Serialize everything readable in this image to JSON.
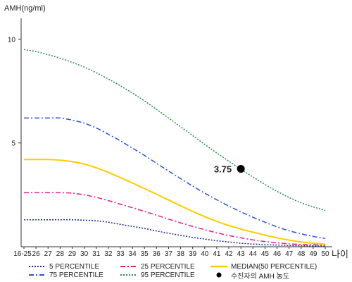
{
  "chart_data": {
    "type": "line",
    "ylabel": "AMH(ng/ml)",
    "xlabel": "나이",
    "categories": [
      "16-25",
      "26",
      "27",
      "28",
      "29",
      "30",
      "31",
      "32",
      "33",
      "34",
      "35",
      "36",
      "37",
      "38",
      "39",
      "40",
      "41",
      "42",
      "43",
      "44",
      "45",
      "46",
      "47",
      "48",
      "49",
      "50"
    ],
    "ylim": [
      0,
      11
    ],
    "yticks": [
      5,
      10
    ],
    "series": [
      {
        "name": "5 PERCENTILE",
        "color": "#1a2a8a",
        "dash": "2,2",
        "values": [
          1.3,
          1.3,
          1.3,
          1.3,
          1.3,
          1.28,
          1.25,
          1.18,
          1.08,
          0.98,
          0.88,
          0.76,
          0.65,
          0.55,
          0.45,
          0.37,
          0.29,
          0.23,
          0.17,
          0.13,
          0.1,
          0.08,
          0.06,
          0.05,
          0.04,
          0.03
        ]
      },
      {
        "name": "25 PERCENTILE",
        "color": "#e0208a",
        "dash": "7,3,2,3",
        "values": [
          2.6,
          2.6,
          2.6,
          2.6,
          2.58,
          2.5,
          2.38,
          2.22,
          2.05,
          1.88,
          1.7,
          1.52,
          1.33,
          1.15,
          0.98,
          0.82,
          0.67,
          0.54,
          0.43,
          0.33,
          0.25,
          0.19,
          0.14,
          0.11,
          0.09,
          0.08
        ]
      },
      {
        "name": "MEDIAN(50 PERCENTILE)",
        "color": "#ffcc00",
        "dash": "",
        "values": [
          4.2,
          4.2,
          4.2,
          4.17,
          4.1,
          3.98,
          3.8,
          3.58,
          3.33,
          3.07,
          2.8,
          2.53,
          2.25,
          1.97,
          1.7,
          1.45,
          1.22,
          1.02,
          0.85,
          0.7,
          0.56,
          0.43,
          0.32,
          0.23,
          0.17,
          0.12
        ]
      },
      {
        "name": "75 PERCENTILE",
        "color": "#3050d0",
        "dash": "7,3,2,3",
        "values": [
          6.2,
          6.2,
          6.2,
          6.2,
          6.1,
          5.95,
          5.72,
          5.42,
          5.1,
          4.75,
          4.4,
          4.02,
          3.65,
          3.28,
          2.92,
          2.58,
          2.26,
          1.96,
          1.68,
          1.42,
          1.18,
          0.96,
          0.77,
          0.62,
          0.5,
          0.4
        ]
      },
      {
        "name": "95 PERCENTILE",
        "color": "#2a8a4a",
        "dash": "2,2",
        "values": [
          9.5,
          9.4,
          9.25,
          9.08,
          8.88,
          8.65,
          8.38,
          8.08,
          7.75,
          7.4,
          7.02,
          6.62,
          6.2,
          5.78,
          5.35,
          4.93,
          4.52,
          4.12,
          3.73,
          3.36,
          3.0,
          2.67,
          2.37,
          2.12,
          1.92,
          1.75
        ]
      }
    ],
    "highlight": {
      "x": "43",
      "value": 3.75,
      "label": "3.75",
      "color": "#000000",
      "name": "수진자의 AMH 농도"
    }
  },
  "legend": [
    {
      "label": "5 PERCENTILE",
      "color": "#1a2a8a",
      "dash": "2,2",
      "type": "line"
    },
    {
      "label": "25 PERCENTILE",
      "color": "#e0208a",
      "dash": "7,3,2,3",
      "type": "line"
    },
    {
      "label": "MEDIAN(50 PERCENTILE)",
      "color": "#ffcc00",
      "dash": "",
      "type": "line"
    },
    {
      "label": "75 PERCENTILE",
      "color": "#3050d0",
      "dash": "7,3,2,3",
      "type": "line"
    },
    {
      "label": "95 PERCENTILE",
      "color": "#2a8a4a",
      "dash": "2,2",
      "type": "line"
    },
    {
      "label": "수진자의 AMH 농도",
      "color": "#000000",
      "dash": "",
      "type": "dot"
    }
  ]
}
